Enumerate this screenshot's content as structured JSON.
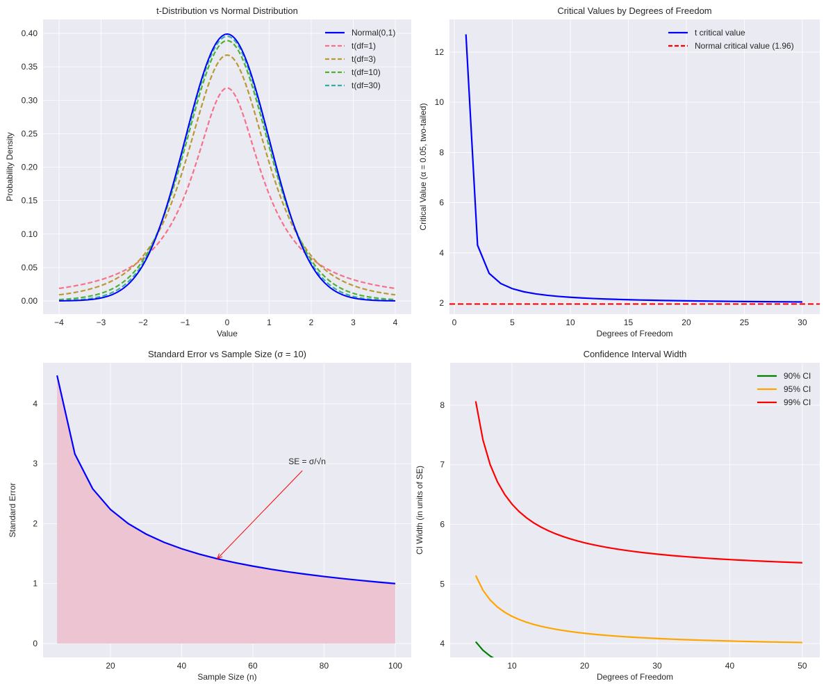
{
  "chart_data": [
    {
      "type": "line",
      "title": "t-Distribution vs Normal Distribution",
      "xlabel": "Value",
      "ylabel": "Probability Density",
      "xlim": [
        -4.38,
        4.38
      ],
      "ylim": [
        -0.0197,
        0.4208
      ],
      "xticks": [
        -4,
        -3,
        -2,
        -1,
        0,
        1,
        2,
        3,
        4
      ],
      "xtick_labels": [
        "−4",
        "−3",
        "−2",
        "−1",
        "0",
        "1",
        "2",
        "3",
        "4"
      ],
      "yticks": [
        0,
        0.05,
        0.1,
        0.15,
        0.2,
        0.25,
        0.3,
        0.35,
        0.4
      ],
      "ytick_labels": [
        "0.00",
        "0.05",
        "0.10",
        "0.15",
        "0.20",
        "0.25",
        "0.30",
        "0.35",
        "0.40"
      ],
      "x_range": [
        -4,
        4
      ],
      "grid": true,
      "legend_position": "top-right",
      "series": [
        {
          "name": "Normal(0,1)",
          "dist": "normal",
          "color": "#0000ff",
          "style": "solid"
        },
        {
          "name": "t(df=1)",
          "dist": "t",
          "df": 1,
          "color": "#f77189",
          "style": "dashed"
        },
        {
          "name": "t(df=3)",
          "dist": "t",
          "df": 3,
          "color": "#bb9832",
          "style": "dashed"
        },
        {
          "name": "t(df=10)",
          "dist": "t",
          "df": 10,
          "color": "#50b131",
          "style": "dashed"
        },
        {
          "name": "t(df=30)",
          "dist": "t",
          "df": 30,
          "color": "#36ada4",
          "style": "dashed"
        }
      ]
    },
    {
      "type": "line",
      "title": "Critical Values by Degrees of Freedom",
      "xlabel": "Degrees of Freedom",
      "ylabel": "Critical Value (α = 0.05, two-tailed)",
      "xlim": [
        -0.42,
        31.5
      ],
      "ylim": [
        1.557,
        13.3
      ],
      "xticks": [
        0,
        5,
        10,
        15,
        20,
        25,
        30
      ],
      "xtick_labels": [
        "0",
        "5",
        "10",
        "15",
        "20",
        "25",
        "30"
      ],
      "yticks": [
        2,
        4,
        6,
        8,
        10,
        12
      ],
      "ytick_labels": [
        "2",
        "4",
        "6",
        "8",
        "10",
        "12"
      ],
      "grid": true,
      "legend_position": "top-right",
      "series": [
        {
          "name": "t critical value",
          "color": "#0000ff",
          "style": "solid",
          "x": [
            1,
            2,
            3,
            4,
            5,
            6,
            7,
            8,
            9,
            10,
            11,
            12,
            13,
            14,
            15,
            16,
            17,
            18,
            19,
            20,
            21,
            22,
            23,
            24,
            25,
            26,
            27,
            28,
            29,
            30
          ],
          "y": [
            12.706,
            4.303,
            3.182,
            2.776,
            2.571,
            2.447,
            2.365,
            2.306,
            2.262,
            2.228,
            2.201,
            2.179,
            2.16,
            2.145,
            2.131,
            2.12,
            2.11,
            2.101,
            2.093,
            2.086,
            2.08,
            2.074,
            2.069,
            2.064,
            2.06,
            2.056,
            2.052,
            2.048,
            2.045,
            2.042
          ]
        },
        {
          "name": "Normal critical value (1.96)",
          "color": "#ff0000",
          "style": "dashed",
          "hline": 1.96
        }
      ]
    },
    {
      "type": "area",
      "title": "Standard Error vs Sample Size (σ = 10)",
      "xlabel": "Sample Size (n)",
      "ylabel": "Standard Error",
      "xlim": [
        1.07,
        104.5
      ],
      "ylim": [
        -0.232,
        4.684
      ],
      "xticks": [
        20,
        40,
        60,
        80,
        100
      ],
      "xtick_labels": [
        "20",
        "40",
        "60",
        "80",
        "100"
      ],
      "yticks": [
        0,
        1,
        2,
        3,
        4
      ],
      "ytick_labels": [
        "0",
        "1",
        "2",
        "3",
        "4"
      ],
      "grid": true,
      "sigma": 10,
      "x": [
        5,
        10,
        15,
        20,
        25,
        30,
        35,
        40,
        45,
        50,
        55,
        60,
        65,
        70,
        75,
        80,
        85,
        90,
        95,
        100
      ],
      "y": [
        4.472,
        3.162,
        2.582,
        2.236,
        2.0,
        1.826,
        1.69,
        1.581,
        1.491,
        1.414,
        1.348,
        1.291,
        1.24,
        1.195,
        1.155,
        1.118,
        1.085,
        1.054,
        1.026,
        1.0
      ],
      "line_color": "#0000ff",
      "fill_color": "#edc5d2",
      "annotation": {
        "text": "SE = σ/√n",
        "xy": [
          50,
          1.414
        ],
        "xytext": [
          70,
          3.0
        ],
        "color": "#ff0000"
      }
    },
    {
      "type": "line",
      "title": "Confidence Interval Width",
      "xlabel": "Degrees of Freedom",
      "ylabel": "CI Width (in units of SE)",
      "xlim": [
        1.48,
        52.4
      ],
      "ylim": [
        3.767,
        8.711
      ],
      "xticks": [
        10,
        20,
        30,
        40,
        50
      ],
      "xtick_labels": [
        "10",
        "20",
        "30",
        "40",
        "50"
      ],
      "yticks": [
        4,
        5,
        6,
        7,
        8
      ],
      "ytick_labels": [
        "4",
        "5",
        "6",
        "7",
        "8"
      ],
      "grid": true,
      "legend_position": "top-right",
      "df_range": [
        5,
        50
      ],
      "series": [
        {
          "name": "90% CI",
          "confidence": 0.9,
          "color": "#008000"
        },
        {
          "name": "95% CI",
          "confidence": 0.95,
          "color": "#ffa500"
        },
        {
          "name": "99% CI",
          "confidence": 0.99,
          "color": "#ff0000"
        }
      ]
    }
  ]
}
